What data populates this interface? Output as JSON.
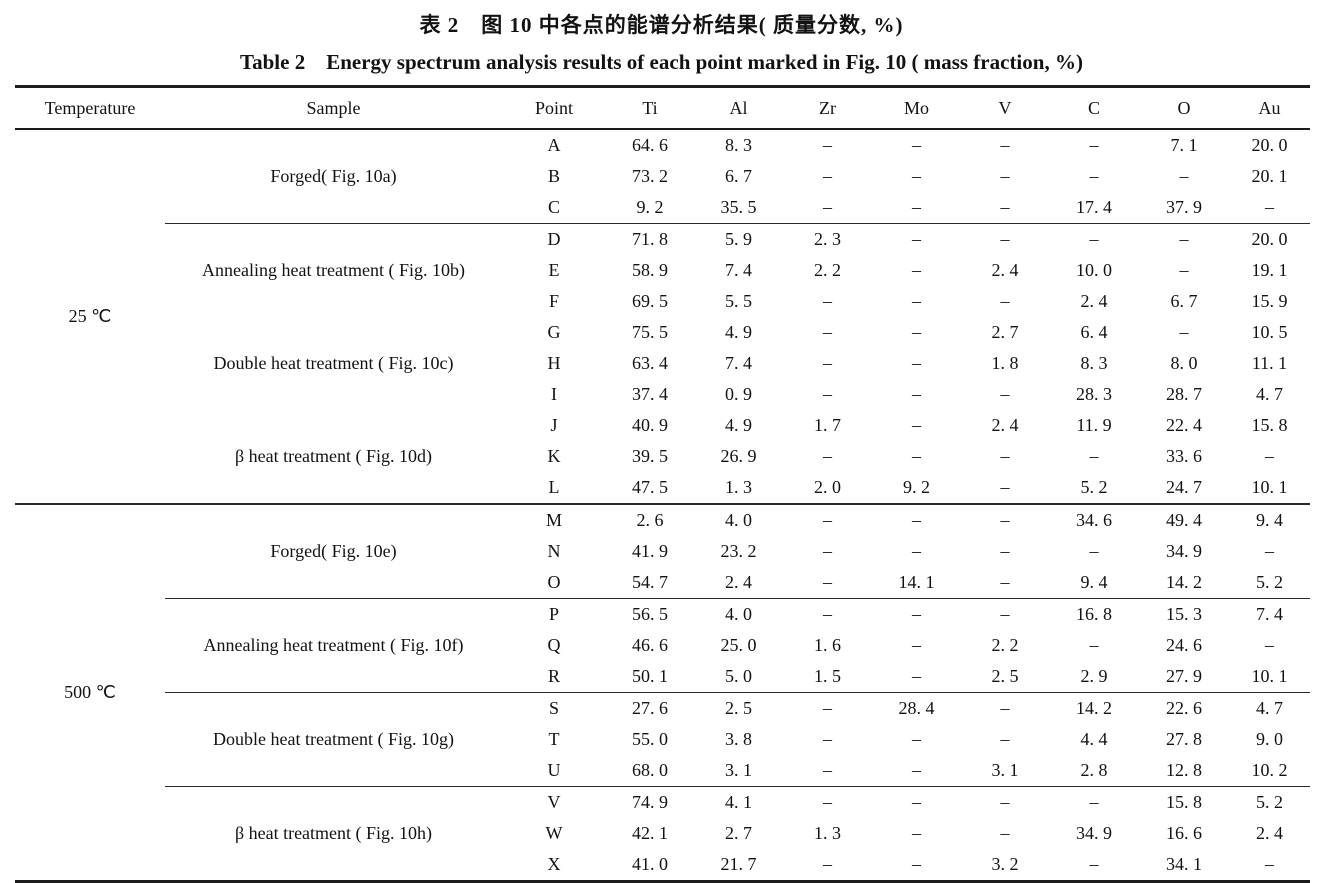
{
  "titles": {
    "zh": "表 2　图 10 中各点的能谱分析结果( 质量分数, %)",
    "en": "Table 2　Energy spectrum analysis results of each point marked in Fig. 10 ( mass fraction, %)"
  },
  "table": {
    "columns": [
      "Temperature",
      "Sample",
      "Point",
      "Ti",
      "Al",
      "Zr",
      "Mo",
      "V",
      "C",
      "O",
      "Au"
    ],
    "missing_value_glyph": "–",
    "sections": [
      {
        "temperature": "25 ℃",
        "rule_after": true,
        "groups": [
          {
            "sample": "Forged( Fig. 10a)",
            "rule_after": true,
            "rows": [
              {
                "point": "A",
                "values": [
                  "64. 6",
                  "8. 3",
                  "–",
                  "–",
                  "–",
                  "–",
                  "7. 1",
                  "20. 0"
                ]
              },
              {
                "point": "B",
                "values": [
                  "73. 2",
                  "6. 7",
                  "–",
                  "–",
                  "–",
                  "–",
                  "–",
                  "20. 1"
                ]
              },
              {
                "point": "C",
                "values": [
                  "9. 2",
                  "35. 5",
                  "–",
                  "–",
                  "–",
                  "17. 4",
                  "37. 9",
                  "–"
                ]
              }
            ]
          },
          {
            "sample": "Annealing heat treatment ( Fig. 10b)",
            "rule_after": false,
            "rows": [
              {
                "point": "D",
                "values": [
                  "71. 8",
                  "5. 9",
                  "2. 3",
                  "–",
                  "–",
                  "–",
                  "–",
                  "20. 0"
                ]
              },
              {
                "point": "E",
                "values": [
                  "58. 9",
                  "7. 4",
                  "2. 2",
                  "–",
                  "2. 4",
                  "10. 0",
                  "–",
                  "19. 1"
                ]
              },
              {
                "point": "F",
                "values": [
                  "69. 5",
                  "5. 5",
                  "–",
                  "–",
                  "–",
                  "2. 4",
                  "6. 7",
                  "15. 9"
                ]
              }
            ]
          },
          {
            "sample": "Double heat treatment ( Fig. 10c)",
            "rule_after": false,
            "rows": [
              {
                "point": "G",
                "values": [
                  "75. 5",
                  "4. 9",
                  "–",
                  "–",
                  "2. 7",
                  "6. 4",
                  "–",
                  "10. 5"
                ]
              },
              {
                "point": "H",
                "values": [
                  "63. 4",
                  "7. 4",
                  "–",
                  "–",
                  "1. 8",
                  "8. 3",
                  "8. 0",
                  "11. 1"
                ]
              },
              {
                "point": "I",
                "values": [
                  "37. 4",
                  "0. 9",
                  "–",
                  "–",
                  "–",
                  "28. 3",
                  "28. 7",
                  "4. 7"
                ]
              }
            ]
          },
          {
            "sample": "β heat treatment ( Fig. 10d)",
            "rule_after": false,
            "rows": [
              {
                "point": "J",
                "values": [
                  "40. 9",
                  "4. 9",
                  "1. 7",
                  "–",
                  "2. 4",
                  "11. 9",
                  "22. 4",
                  "15. 8"
                ]
              },
              {
                "point": "K",
                "values": [
                  "39. 5",
                  "26. 9",
                  "–",
                  "–",
                  "–",
                  "–",
                  "33. 6",
                  "–"
                ]
              },
              {
                "point": "L",
                "values": [
                  "47. 5",
                  "1. 3",
                  "2. 0",
                  "9. 2",
                  "–",
                  "5. 2",
                  "24. 7",
                  "10. 1"
                ]
              }
            ]
          }
        ]
      },
      {
        "temperature": "500 ℃",
        "rule_after": false,
        "groups": [
          {
            "sample": "Forged( Fig. 10e)",
            "rule_after": true,
            "rows": [
              {
                "point": "M",
                "values": [
                  "2. 6",
                  "4. 0",
                  "–",
                  "–",
                  "–",
                  "34. 6",
                  "49. 4",
                  "9. 4"
                ]
              },
              {
                "point": "N",
                "values": [
                  "41. 9",
                  "23. 2",
                  "–",
                  "–",
                  "–",
                  "–",
                  "34. 9",
                  "–"
                ]
              },
              {
                "point": "O",
                "values": [
                  "54. 7",
                  "2. 4",
                  "–",
                  "14. 1",
                  "–",
                  "9. 4",
                  "14. 2",
                  "5. 2"
                ]
              }
            ]
          },
          {
            "sample": "Annealing heat treatment ( Fig. 10f)",
            "rule_after": true,
            "rows": [
              {
                "point": "P",
                "values": [
                  "56. 5",
                  "4. 0",
                  "–",
                  "–",
                  "–",
                  "16. 8",
                  "15. 3",
                  "7. 4"
                ]
              },
              {
                "point": "Q",
                "values": [
                  "46. 6",
                  "25. 0",
                  "1. 6",
                  "–",
                  "2. 2",
                  "–",
                  "24. 6",
                  "–"
                ]
              },
              {
                "point": "R",
                "values": [
                  "50. 1",
                  "5. 0",
                  "1. 5",
                  "–",
                  "2. 5",
                  "2. 9",
                  "27. 9",
                  "10. 1"
                ]
              }
            ]
          },
          {
            "sample": "Double heat treatment ( Fig. 10g)",
            "rule_after": true,
            "rows": [
              {
                "point": "S",
                "values": [
                  "27. 6",
                  "2. 5",
                  "–",
                  "28. 4",
                  "–",
                  "14. 2",
                  "22. 6",
                  "4. 7"
                ]
              },
              {
                "point": "T",
                "values": [
                  "55. 0",
                  "3. 8",
                  "–",
                  "–",
                  "–",
                  "4. 4",
                  "27. 8",
                  "9. 0"
                ]
              },
              {
                "point": "U",
                "values": [
                  "68. 0",
                  "3. 1",
                  "–",
                  "–",
                  "3. 1",
                  "2. 8",
                  "12. 8",
                  "10. 2"
                ]
              }
            ]
          },
          {
            "sample": "β heat treatment ( Fig. 10h)",
            "rule_after": false,
            "rows": [
              {
                "point": "V",
                "values": [
                  "74. 9",
                  "4. 1",
                  "–",
                  "–",
                  "–",
                  "–",
                  "15. 8",
                  "5. 2"
                ]
              },
              {
                "point": "W",
                "values": [
                  "42. 1",
                  "2. 7",
                  "1. 3",
                  "–",
                  "–",
                  "34. 9",
                  "16. 6",
                  "2. 4"
                ]
              },
              {
                "point": "X",
                "values": [
                  "41. 0",
                  "21. 7",
                  "–",
                  "–",
                  "3. 2",
                  "–",
                  "34. 1",
                  "–"
                ]
              }
            ]
          }
        ]
      }
    ]
  }
}
